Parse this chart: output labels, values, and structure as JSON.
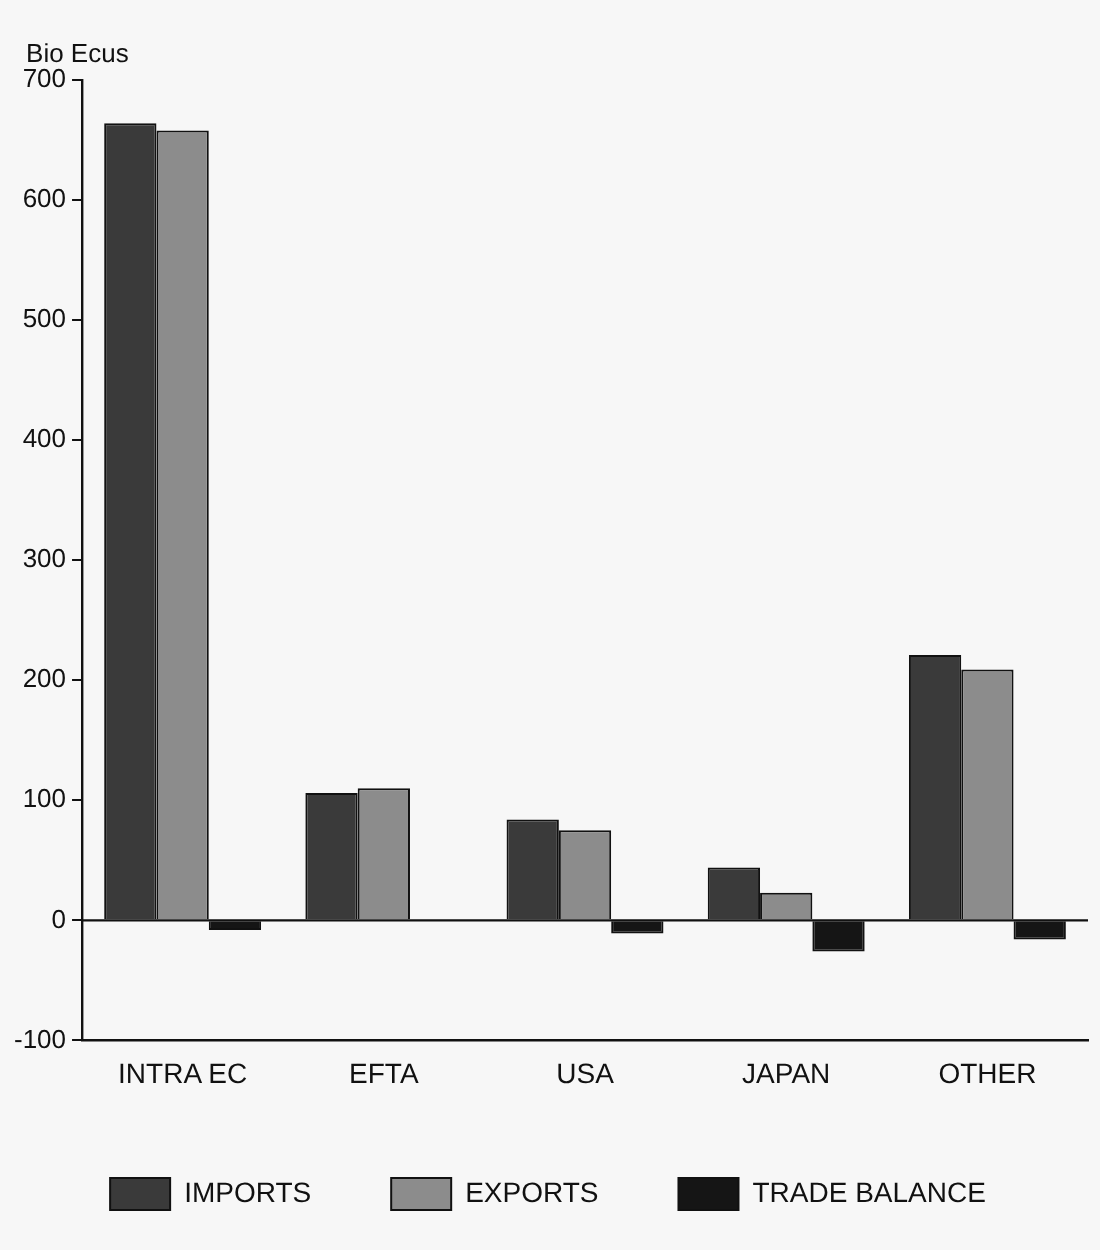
{
  "chart_data": {
    "type": "bar",
    "ylabel": "Bio Ecus",
    "categories": [
      "INTRA EC",
      "EFTA",
      "USA",
      "JAPAN",
      "OTHER"
    ],
    "series": [
      {
        "name": "IMPORTS",
        "color": "#3a3a3a",
        "values": [
          664,
          106,
          84,
          44,
          221
        ]
      },
      {
        "name": "EXPORTS",
        "color": "#8c8c8c",
        "values": [
          658,
          110,
          75,
          23,
          209
        ]
      },
      {
        "name": "TRADE BALANCE",
        "color": "#151515",
        "values": [
          -8,
          1,
          -11,
          -26,
          -16
        ]
      }
    ],
    "ylim": [
      -100,
      700
    ],
    "yticks": [
      -100,
      0,
      100,
      200,
      300,
      400,
      500,
      600,
      700
    ],
    "legend": "bottom"
  }
}
